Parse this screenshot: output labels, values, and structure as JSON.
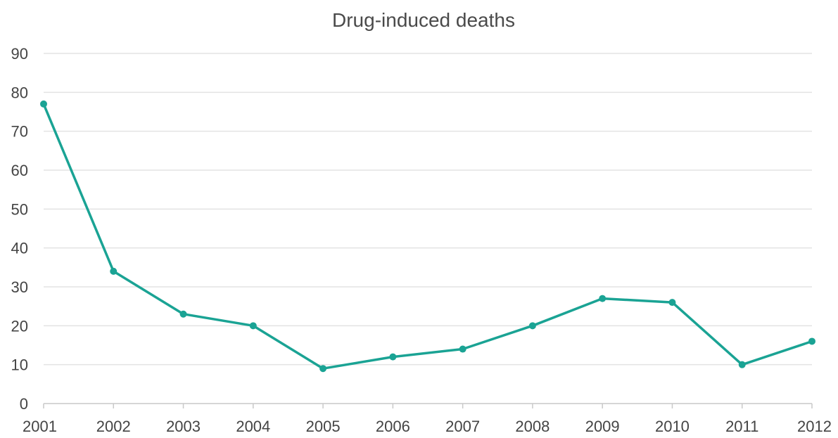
{
  "chart_data": {
    "type": "line",
    "title": "Drug-induced deaths",
    "xlabel": "",
    "ylabel": "",
    "categories": [
      "2001",
      "2002",
      "2003",
      "2004",
      "2005",
      "2006",
      "2007",
      "2008",
      "2009",
      "2010",
      "2011",
      "2012"
    ],
    "series": [
      {
        "values": [
          77,
          34,
          23,
          20,
          9,
          12,
          14,
          20,
          27,
          26,
          10,
          16
        ]
      }
    ],
    "ylim": [
      0,
      90
    ],
    "yticks": [
      "0",
      "10",
      "20",
      "30",
      "40",
      "50",
      "60",
      "70",
      "80",
      "90"
    ],
    "grid": true,
    "legend": "none",
    "line_color": "#1aa394",
    "title_color": "#4a4a4a"
  }
}
